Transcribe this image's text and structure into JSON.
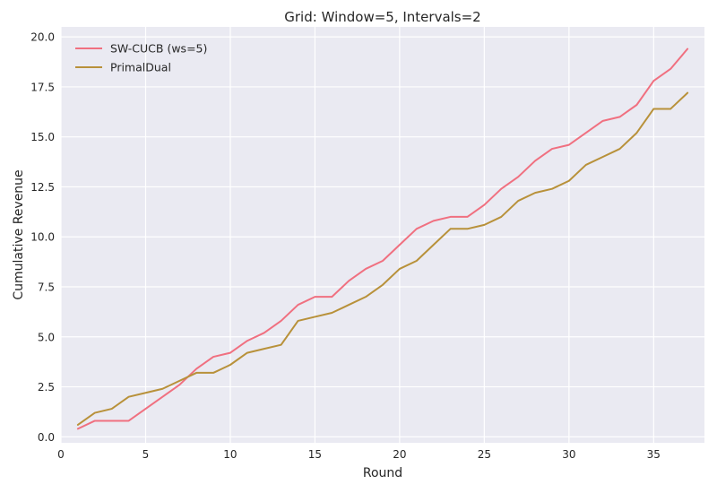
{
  "chart_data": {
    "type": "line",
    "title": "Grid: Window=5, Intervals=2",
    "xlabel": "Round",
    "ylabel": "Cumulative Revenue",
    "xlim": [
      0,
      38
    ],
    "ylim": [
      -0.3,
      20.5
    ],
    "xticks": [
      0,
      5,
      10,
      15,
      20,
      25,
      30,
      35
    ],
    "yticks": [
      "0.0",
      "2.5",
      "5.0",
      "7.5",
      "10.0",
      "12.5",
      "15.0",
      "17.5",
      "20.0"
    ],
    "grid": true,
    "legend_position": "top-left",
    "x": [
      1,
      2,
      3,
      4,
      5,
      6,
      7,
      8,
      9,
      10,
      11,
      12,
      13,
      14,
      15,
      16,
      17,
      18,
      19,
      20,
      21,
      22,
      23,
      24,
      25,
      26,
      27,
      28,
      29,
      30,
      31,
      32,
      33,
      34,
      35,
      36,
      37
    ],
    "series": [
      {
        "name": "SW-CUCB (ws=5)",
        "color": "#f07080",
        "values": [
          0.4,
          0.8,
          0.8,
          0.8,
          1.4,
          2.0,
          2.6,
          3.4,
          4.0,
          4.2,
          4.8,
          5.2,
          5.8,
          6.6,
          7.0,
          7.0,
          7.8,
          8.4,
          8.8,
          9.6,
          10.4,
          10.8,
          11.0,
          11.0,
          11.6,
          12.4,
          13.0,
          13.8,
          14.4,
          14.6,
          15.2,
          15.8,
          16.0,
          16.6,
          17.8,
          18.4,
          19.4
        ]
      },
      {
        "name": "PrimalDual",
        "color": "#b8913a",
        "values": [
          0.6,
          1.2,
          1.4,
          2.0,
          2.2,
          2.4,
          2.8,
          3.2,
          3.2,
          3.6,
          4.2,
          4.4,
          4.6,
          5.8,
          6.0,
          6.2,
          6.6,
          7.0,
          7.6,
          8.4,
          8.8,
          9.6,
          10.4,
          10.4,
          10.6,
          11.0,
          11.8,
          12.2,
          12.4,
          12.8,
          13.6,
          14.0,
          14.4,
          15.2,
          16.4,
          16.4,
          17.2
        ]
      }
    ]
  }
}
